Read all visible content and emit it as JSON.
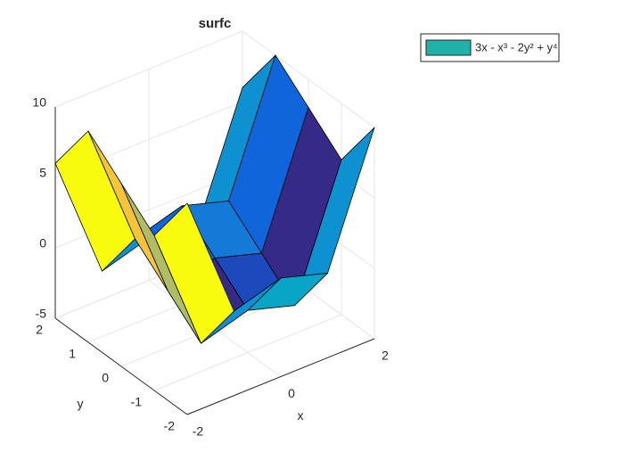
{
  "chart_data": {
    "type": "surface",
    "title": "surfc",
    "x": [
      -2,
      -1,
      0,
      1,
      2
    ],
    "y": [
      -2,
      -1,
      0,
      1,
      2
    ],
    "z": [
      [
        10,
        1,
        2,
        1,
        10
      ],
      [
        6,
        -3,
        -2,
        -3,
        6
      ],
      [
        8,
        -1,
        0,
        -1,
        8
      ],
      [
        10,
        1,
        2,
        1,
        10
      ],
      [
        6,
        -3,
        -2,
        -3,
        6
      ]
    ],
    "xlim": [
      -2,
      2
    ],
    "ylim": [
      -2,
      2
    ],
    "zlim": [
      -5,
      10
    ],
    "xticks": [
      -2,
      0,
      2
    ],
    "yticks": [
      -2,
      -1,
      0,
      1,
      2
    ],
    "zticks": [
      -5,
      0,
      5,
      10
    ],
    "xlabel": "x",
    "ylabel": "y",
    "grid": true,
    "legend": {
      "label": "3x - x³ - 2y² + y⁴",
      "color": "#20b2aa",
      "position": "northeast-outside"
    }
  }
}
